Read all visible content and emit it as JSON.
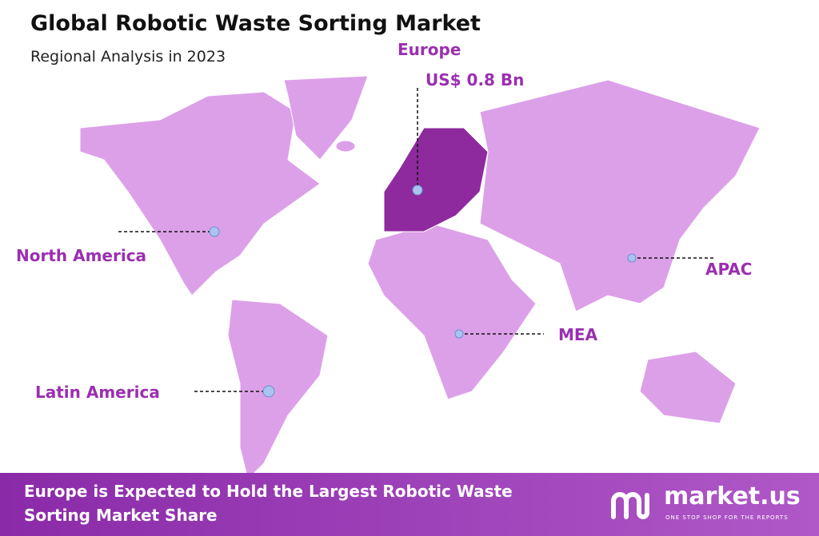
{
  "header": {
    "title": "Global Robotic Waste Sorting Market",
    "subtitle": "Regional Analysis in 2023"
  },
  "regions": [
    {
      "label": "Europe",
      "value": "US$ 0.8 Bn"
    },
    {
      "label": "North America"
    },
    {
      "label": "APAC"
    },
    {
      "label": "MEA"
    },
    {
      "label": "Latin America"
    }
  ],
  "footer": {
    "text": "Europe is Expected to Hold the Largest Robotic Waste Sorting Market Share",
    "brand": "market.us",
    "tagline": "ONE STOP SHOP FOR THE REPORTS"
  }
}
